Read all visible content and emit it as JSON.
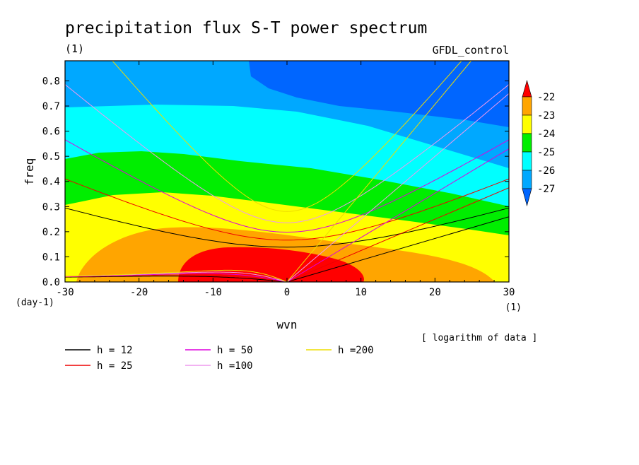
{
  "chart_data": {
    "type": "heatmap",
    "title": "precipitation flux S-T power spectrum",
    "subtitle": "(1)",
    "model_label": "GFDL_control",
    "xlabel": "wvn",
    "ylabel": "freq",
    "xunit": "(1)",
    "yunit": "(day-1)",
    "note": "[ logarithm of data ]",
    "xlim": [
      -30,
      30
    ],
    "ylim": [
      0,
      0.88
    ],
    "xticks": [
      "-30",
      "-20",
      "-10",
      "0",
      "10",
      "20",
      "30"
    ],
    "yticks": [
      "0.0",
      "0.1",
      "0.2",
      "0.3",
      "0.4",
      "0.5",
      "0.6",
      "0.7",
      "0.8"
    ],
    "colorbar": {
      "levels": [
        "-22",
        "-23",
        "-24",
        "-25",
        "-26",
        "-27"
      ],
      "colors": [
        "#ff0000",
        "#ffa500",
        "#ffff00",
        "#00ee00",
        "#00ffff",
        "#00a8ff",
        "#0066ff"
      ]
    },
    "dispersion_curves": [
      {
        "label": "h = 12",
        "h": 12,
        "color": "#000000"
      },
      {
        "label": "h = 25",
        "h": 25,
        "color": "#ee0000"
      },
      {
        "label": "h = 50",
        "h": 50,
        "color": "#dd00dd"
      },
      {
        "label": "h =100",
        "h": 100,
        "color": "#ee99ee"
      },
      {
        "label": "h =200",
        "h": 200,
        "color": "#eedd00"
      }
    ]
  }
}
